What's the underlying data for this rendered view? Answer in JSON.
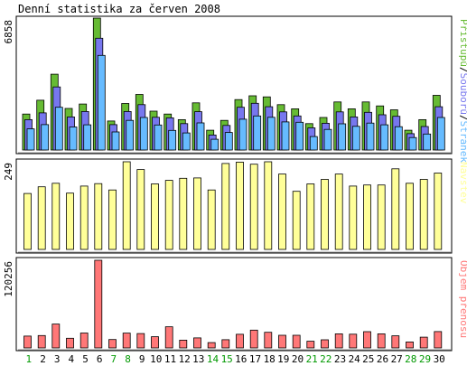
{
  "chart_data": {
    "type": "bar",
    "title": "Denní statistika za červen 2008",
    "categories": [
      "1",
      "2",
      "3",
      "4",
      "5",
      "6",
      "7",
      "8",
      "9",
      "10",
      "11",
      "12",
      "13",
      "14",
      "15",
      "16",
      "17",
      "18",
      "19",
      "20",
      "21",
      "22",
      "23",
      "24",
      "25",
      "26",
      "27",
      "28",
      "29",
      "30"
    ],
    "weekend_days": [
      "1",
      "7",
      "8",
      "14",
      "15",
      "21",
      "22",
      "28",
      "29"
    ],
    "colors": {
      "hits": "#66bb33",
      "files": "#7777ee",
      "pages": "#66bbff",
      "visits": "#ffff99",
      "kbytes": "#ff7777",
      "weekend_label": "#009900",
      "weekday_label": "#000000",
      "background": "#ffffff",
      "grid": "#cccccc",
      "border": "#000000"
    },
    "panels": [
      {
        "id": "hits-files-pages",
        "max_label": "6858",
        "legend": [
          {
            "text": "Přístupů",
            "color": "#66bb33"
          },
          {
            "text": "/",
            "color": "#000000"
          },
          {
            "text": "Souborů",
            "color": "#7777ee"
          },
          {
            "text": "/",
            "color": "#000000"
          },
          {
            "text": "Stránek",
            "color": "#66bbff"
          }
        ],
        "ymax": 6858,
        "series": [
          {
            "name": "Přístupů",
            "values": [
              1870,
              2590,
              3940,
              2160,
              2390,
              6858,
              1510,
              2420,
              2890,
              2020,
              1870,
              1580,
              2450,
              1030,
              1540,
              2620,
              2820,
              2760,
              2360,
              2140,
              1370,
              1690,
              2500,
              2140,
              2500,
              2290,
              2090,
              1030,
              1580,
              2840
            ]
          },
          {
            "name": "Souborů",
            "values": [
              1580,
              1930,
              3280,
              1720,
              2000,
              5810,
              1320,
              2000,
              2360,
              1700,
              1670,
              1370,
              1990,
              780,
              1280,
              2220,
              2430,
              2250,
              1980,
              1770,
              1150,
              1390,
              1980,
              1720,
              1960,
              1830,
              1750,
              850,
              1220,
              2250
            ]
          },
          {
            "name": "Stránek",
            "values": [
              1100,
              1320,
              2220,
              1200,
              1310,
              4920,
              940,
              1540,
              1690,
              1300,
              1020,
              890,
              1410,
              560,
              910,
              1600,
              1770,
              1700,
              1460,
              1440,
              700,
              1070,
              1360,
              1230,
              1400,
              1310,
              1210,
              650,
              830,
              1690
            ]
          }
        ]
      },
      {
        "id": "visits",
        "max_label": "249",
        "legend": [
          {
            "text": "Návštěv",
            "color": "#ffff99"
          }
        ],
        "ymax": 249,
        "series": [
          {
            "name": "Návštěv",
            "values": [
              159,
              178,
              188,
              160,
              180,
              187,
              169,
              249,
              227,
              186,
              196,
              202,
              203,
              169,
              244,
              248,
              242,
              249,
              214,
              165,
              186,
              199,
              214,
              180,
              183,
              183,
              229,
              188,
              199,
              217
            ]
          }
        ]
      },
      {
        "id": "kbytes",
        "max_label": "120256",
        "legend": [
          {
            "text": "Objem přenosu",
            "color": "#ff7777"
          }
        ],
        "ymax": 120256,
        "series": [
          {
            "name": "Objem přenosu",
            "values": [
              16200,
              17000,
              32700,
              13300,
              20400,
              120256,
              11500,
              20300,
              19700,
              15400,
              29000,
              10600,
              13700,
              7300,
              11300,
              18700,
              24400,
              21500,
              17300,
              17400,
              9200,
              11200,
              19300,
              18800,
              22300,
              19300,
              16600,
              8200,
              14700,
              22500
            ]
          }
        ]
      }
    ]
  }
}
